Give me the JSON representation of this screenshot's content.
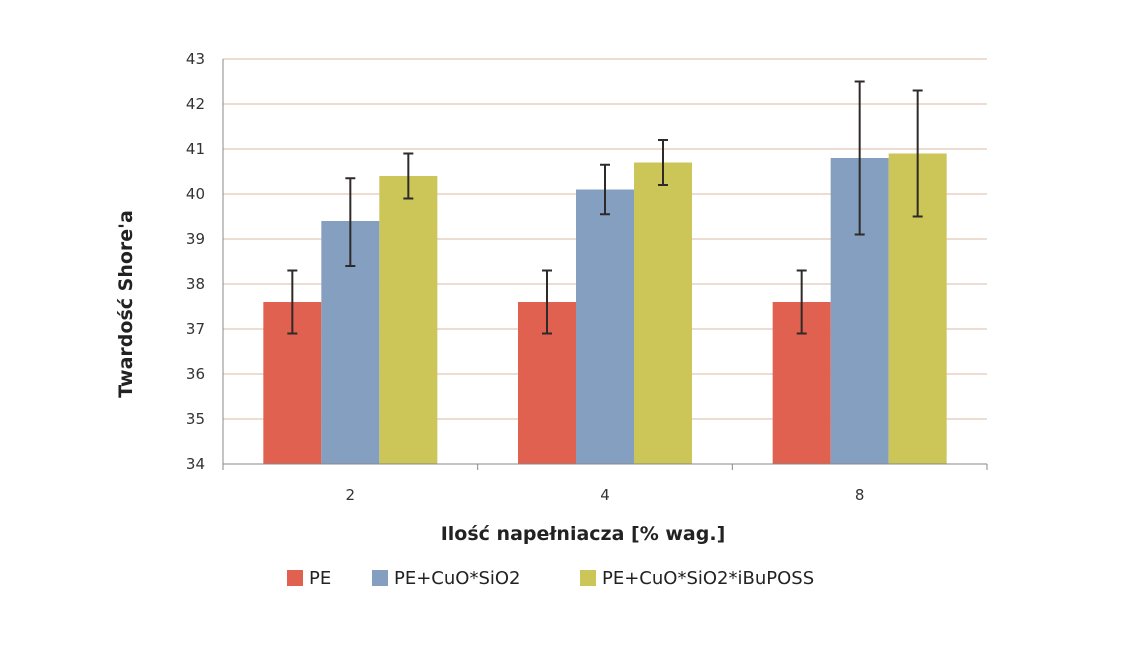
{
  "chart_data": {
    "type": "bar",
    "title": "",
    "xlabel": "Ilość napełniacza [% wag.]",
    "ylabel": "Twardość Shore'a",
    "categories": [
      "2",
      "4",
      "8"
    ],
    "ylim": [
      34,
      43
    ],
    "yticks": [
      "34",
      "35",
      "36",
      "37",
      "38",
      "39",
      "40",
      "41",
      "42",
      "43"
    ],
    "grid": true,
    "legend_position": "bottom",
    "series": [
      {
        "name": "PE",
        "color": "#E06150",
        "values": [
          37.6,
          37.6,
          37.6
        ],
        "error_low": [
          36.9,
          36.9,
          36.9
        ],
        "error_high": [
          38.3,
          38.3,
          38.3
        ]
      },
      {
        "name": "PE+CuO*SiO2",
        "color": "#859FC0",
        "values": [
          39.4,
          40.1,
          40.8
        ],
        "error_low": [
          38.4,
          39.55,
          39.1
        ],
        "error_high": [
          40.35,
          40.65,
          42.5
        ]
      },
      {
        "name": "PE+CuO*SiO2*iBuPOSS",
        "color": "#CCC558",
        "values": [
          40.4,
          40.7,
          40.9
        ],
        "error_low": [
          39.9,
          40.2,
          39.5
        ],
        "error_high": [
          40.9,
          41.2,
          42.3
        ]
      }
    ]
  }
}
